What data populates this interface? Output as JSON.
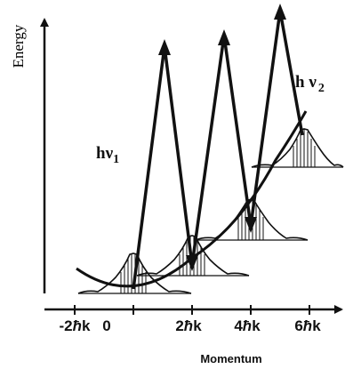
{
  "axes": {
    "x_title": "Momentum",
    "y_title": "Energy",
    "x_ticks": [
      {
        "pre": "-2",
        "hbar": "ħ",
        "post": "k"
      },
      {
        "pre": "0",
        "hbar": "",
        "post": ""
      },
      {
        "pre": "2",
        "hbar": "ħ",
        "post": "k"
      },
      {
        "pre": "4",
        "hbar": "ħ",
        "post": "k"
      },
      {
        "pre": "6",
        "hbar": "ħ",
        "post": "k"
      }
    ]
  },
  "photons": [
    {
      "base": "hν",
      "sub": "1"
    },
    {
      "base": "h ν",
      "sub": "2"
    }
  ],
  "colors": {
    "ink": "#111111",
    "background": "#ffffff"
  }
}
